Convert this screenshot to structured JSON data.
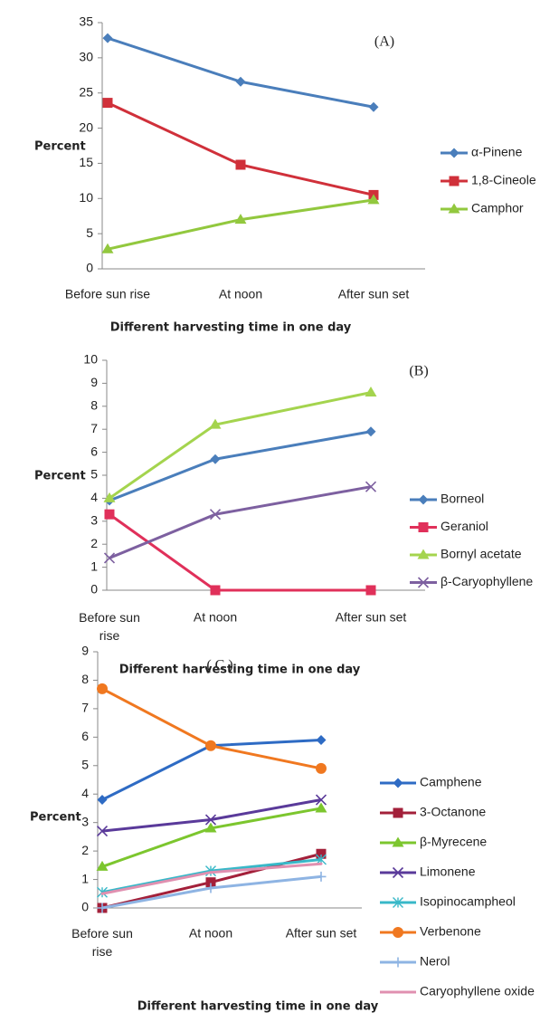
{
  "chart_data": [
    {
      "type": "line",
      "annotation": "(A)",
      "y_label": "Percent",
      "x_label": "Different harvesting time in one day",
      "categories": [
        "Before sun rise",
        "At noon",
        "After sun set"
      ],
      "ylim": [
        0,
        35
      ],
      "yticks": [
        0,
        5,
        10,
        15,
        20,
        25,
        30,
        35
      ],
      "grid": false,
      "series": [
        {
          "name": "α-Pinene",
          "color": "#4a7ebb",
          "marker": "diamond",
          "values": [
            32.8,
            26.6,
            23.0
          ]
        },
        {
          "name": "1,8-Cineole",
          "color": "#d0303a",
          "marker": "square",
          "values": [
            23.6,
            14.8,
            10.5
          ]
        },
        {
          "name": "Camphor",
          "color": "#92c83e",
          "marker": "triangle",
          "values": [
            2.8,
            7.0,
            9.8
          ]
        }
      ]
    },
    {
      "type": "line",
      "annotation": "(B)",
      "y_label": "Percent",
      "x_label": "Different harvesting time in one day",
      "categories": [
        "Before sun rise",
        "At noon",
        "After sun set"
      ],
      "ylim": [
        0,
        10
      ],
      "yticks": [
        0,
        1,
        2,
        3,
        4,
        5,
        6,
        7,
        8,
        9,
        10
      ],
      "grid": false,
      "series": [
        {
          "name": "Borneol",
          "color": "#4a7ebb",
          "marker": "diamond",
          "values": [
            3.9,
            5.7,
            6.9
          ]
        },
        {
          "name": "Geraniol",
          "color": "#e0305a",
          "marker": "square",
          "values": [
            3.3,
            0,
            0
          ]
        },
        {
          "name": "Bornyl acetate",
          "color": "#a4d44e",
          "marker": "triangle",
          "values": [
            4.0,
            7.2,
            8.6
          ]
        },
        {
          "name": "β-Caryophyllene",
          "color": "#7d60a0",
          "marker": "x",
          "values": [
            1.4,
            3.3,
            4.5
          ]
        }
      ]
    },
    {
      "type": "line",
      "annotation": "( C )",
      "y_label": "Percent",
      "x_label": "Different harvesting time in one day",
      "categories": [
        "Before sun rise",
        "At noon",
        "After sun set"
      ],
      "ylim": [
        0,
        9
      ],
      "yticks": [
        0,
        1,
        2,
        3,
        4,
        5,
        6,
        7,
        8,
        9
      ],
      "grid": false,
      "series": [
        {
          "name": "Camphene",
          "color": "#2e6bc4",
          "marker": "diamond",
          "values": [
            3.8,
            5.7,
            5.9
          ]
        },
        {
          "name": "3-Octanone",
          "color": "#a3203a",
          "marker": "square",
          "values": [
            0,
            0.9,
            1.9
          ]
        },
        {
          "name": "β-Myrecene",
          "color": "#7cc62e",
          "marker": "triangle",
          "values": [
            1.45,
            2.8,
            3.5
          ]
        },
        {
          "name": "Limonene",
          "color": "#5a3a9a",
          "marker": "x",
          "values": [
            2.7,
            3.1,
            3.8
          ]
        },
        {
          "name": "Isopinocampheol",
          "color": "#38b8c8",
          "marker": "star",
          "values": [
            0.55,
            1.3,
            1.7
          ]
        },
        {
          "name": "Verbenone",
          "color": "#f07820",
          "marker": "circle",
          "values": [
            7.7,
            5.7,
            4.9
          ]
        },
        {
          "name": "Nerol",
          "color": "#8eb4e3",
          "marker": "plus",
          "values": [
            0,
            0.7,
            1.1
          ]
        },
        {
          "name": "Caryophyllene oxide",
          "color": "#e090b0",
          "marker": "none",
          "values": [
            0.5,
            1.25,
            1.55
          ]
        }
      ]
    }
  ]
}
